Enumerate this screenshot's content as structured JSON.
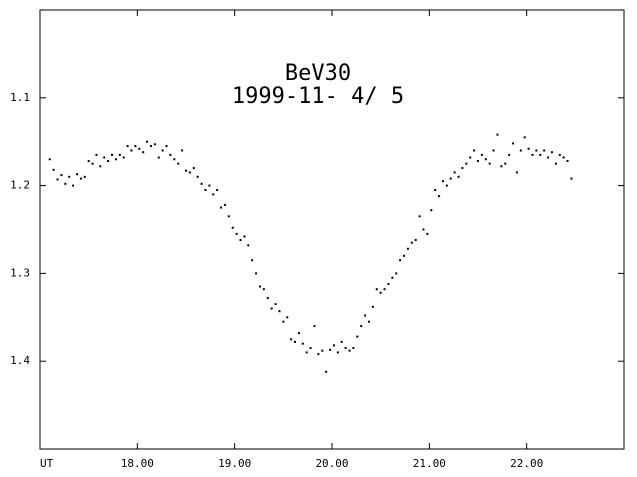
{
  "chart_data": {
    "type": "scatter",
    "title": "BeV30",
    "subtitle": "1999-11- 4/ 5",
    "xlim": [
      17,
      23
    ],
    "ylim": [
      1.0,
      1.5
    ],
    "y_inverted": true,
    "xticks": [
      {
        "value": 17,
        "label": "UT"
      },
      {
        "value": 18,
        "label": "18.00"
      },
      {
        "value": 19,
        "label": "19.00"
      },
      {
        "value": 20,
        "label": "20.00"
      },
      {
        "value": 21,
        "label": "21.00"
      },
      {
        "value": 22,
        "label": "22.00"
      }
    ],
    "yticks": [
      1.1,
      1.2,
      1.3,
      1.4
    ],
    "color": "#000000",
    "series": [
      {
        "name": "BeV30",
        "x": [
          17.1,
          17.14,
          17.18,
          17.22,
          17.26,
          17.3,
          17.34,
          17.38,
          17.42,
          17.46,
          17.5,
          17.54,
          17.58,
          17.62,
          17.66,
          17.7,
          17.74,
          17.78,
          17.82,
          17.86,
          17.9,
          17.94,
          17.98,
          18.02,
          18.06,
          18.1,
          18.14,
          18.18,
          18.22,
          18.26,
          18.3,
          18.34,
          18.38,
          18.42,
          18.46,
          18.5,
          18.54,
          18.58,
          18.62,
          18.66,
          18.7,
          18.74,
          18.78,
          18.82,
          18.86,
          18.9,
          18.94,
          18.98,
          19.02,
          19.06,
          19.1,
          19.14,
          19.18,
          19.22,
          19.26,
          19.3,
          19.34,
          19.38,
          19.42,
          19.46,
          19.5,
          19.54,
          19.58,
          19.62,
          19.66,
          19.7,
          19.74,
          19.78,
          19.82,
          19.86,
          19.9,
          19.94,
          19.98,
          20.02,
          20.06,
          20.1,
          20.14,
          20.18,
          20.22,
          20.26,
          20.3,
          20.34,
          20.38,
          20.42,
          20.46,
          20.5,
          20.54,
          20.58,
          20.62,
          20.66,
          20.7,
          20.74,
          20.78,
          20.82,
          20.86,
          20.9,
          20.94,
          20.98,
          21.02,
          21.06,
          21.1,
          21.14,
          21.18,
          21.22,
          21.26,
          21.3,
          21.34,
          21.38,
          21.42,
          21.46,
          21.5,
          21.54,
          21.58,
          21.62,
          21.66,
          21.7,
          21.74,
          21.78,
          21.82,
          21.86,
          21.9,
          21.94,
          21.98,
          22.02,
          22.06,
          22.1,
          22.14,
          22.18,
          22.22,
          22.26,
          22.3,
          22.34,
          22.38,
          22.42,
          22.46
        ],
        "values": [
          1.17,
          1.182,
          1.193,
          1.188,
          1.198,
          1.19,
          1.2,
          1.187,
          1.192,
          1.19,
          1.172,
          1.175,
          1.165,
          1.178,
          1.168,
          1.172,
          1.165,
          1.17,
          1.165,
          1.168,
          1.155,
          1.16,
          1.155,
          1.158,
          1.162,
          1.15,
          1.155,
          1.153,
          1.168,
          1.16,
          1.155,
          1.165,
          1.17,
          1.175,
          1.16,
          1.183,
          1.185,
          1.18,
          1.19,
          1.198,
          1.205,
          1.2,
          1.21,
          1.205,
          1.225,
          1.222,
          1.235,
          1.248,
          1.255,
          1.262,
          1.258,
          1.268,
          1.285,
          1.3,
          1.315,
          1.318,
          1.328,
          1.34,
          1.335,
          1.343,
          1.355,
          1.35,
          1.375,
          1.378,
          1.368,
          1.38,
          1.39,
          1.385,
          1.36,
          1.392,
          1.388,
          1.412,
          1.387,
          1.382,
          1.39,
          1.378,
          1.385,
          1.388,
          1.385,
          1.372,
          1.36,
          1.348,
          1.355,
          1.338,
          1.318,
          1.322,
          1.318,
          1.312,
          1.305,
          1.3,
          1.285,
          1.28,
          1.272,
          1.265,
          1.262,
          1.235,
          1.25,
          1.255,
          1.228,
          1.205,
          1.212,
          1.195,
          1.2,
          1.192,
          1.185,
          1.19,
          1.18,
          1.175,
          1.168,
          1.16,
          1.172,
          1.165,
          1.17,
          1.175,
          1.16,
          1.142,
          1.178,
          1.175,
          1.165,
          1.152,
          1.185,
          1.16,
          1.145,
          1.158,
          1.165,
          1.16,
          1.165,
          1.16,
          1.168,
          1.162,
          1.175,
          1.165,
          1.168,
          1.172,
          1.192
        ]
      }
    ]
  }
}
